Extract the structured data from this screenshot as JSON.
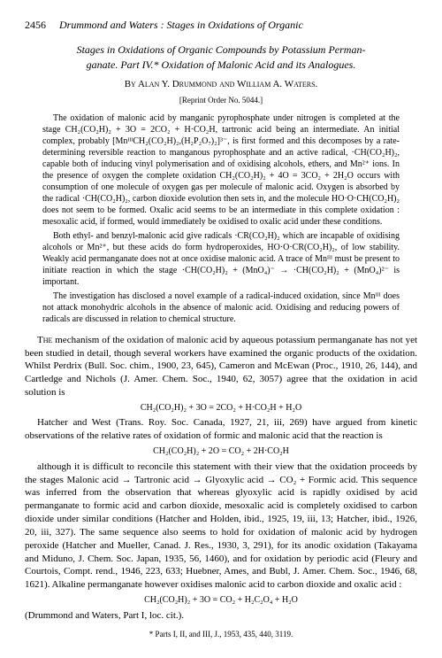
{
  "header": {
    "page_number": "2456",
    "running_title": "Drummond and Waters : Stages in Oxidations of Organic"
  },
  "title": {
    "line1": "Stages in Oxidations of Organic Compounds by Potassium Perman-",
    "line2": "ganate. Part IV.* Oxidation of Malonic Acid and its Analogues."
  },
  "authors": "By Alan Y. Drummond and William A. Waters.",
  "reprint": "[Reprint Order No. 5044.]",
  "abstract": {
    "p1": "The oxidation of malonic acid by manganic pyrophosphate under nitrogen is completed at the stage CH₂(CO₂H)₂ + 3O = 2CO₂ + H·CO₂H, tartronic acid being an intermediate. An initial complex, probably [MnᴵᴵᴵCH₂(CO₂H)₂,(H₂P₂O₇)₂]³⁻, is first formed and this decomposes by a rate-determining reversible reaction to manganous pyrophosphate and an active radical, ·CH(CO₂H)₂, capable both of inducing vinyl polymerisation and of oxidising alcohols, ethers, and Mn²⁺ ions. In the presence of oxygen the complete oxidation CH₂(CO₂H)₂ + 4O = 3CO₂ + 2H₂O occurs with consumption of one molecule of oxygen gas per molecule of malonic acid. Oxygen is absorbed by the radical ·CH(CO₂H)₂, carbon dioxide evolution then sets in, and the molecule HO·O·CH(CO₂H)₂ does not seem to be formed. Oxalic acid seems to be an intermediate in this complete oxidation : mesoxalic acid, if formed, would immediately be oxidised to oxalic acid under these conditions.",
    "p2": "Both ethyl- and benzyl-malonic acid give radicals ·CR(CO₂H)₂ which are incapable of oxidising alcohols or Mn²⁺, but these acids do form hydroperoxides, HO·O·CR(CO₂H)₂, of low stability. Weakly acid permanganate does not at once oxidise malonic acid. A trace of Mnᴵᴵᴵ must be present to initiate reaction in which the stage ·CH(CO₂H)₂ + (MnO₄)⁻ → ·CH(CO₂H)₂ + (MnO₄)²⁻ is important.",
    "p3": "The investigation has disclosed a novel example of a radical-induced oxidation, since Mnᴵᴵᴵ does not attack monohydric alcohols in the absence of malonic acid. Oxidising and reducing powers of radicals are discussed in relation to chemical structure."
  },
  "body": {
    "intro": "The mechanism of the oxidation of malonic acid by aqueous potassium permanganate has not yet been studied in detail, though several workers have examined the organic products of the oxidation. Whilst Perdrix (Bull. Soc. chim., 1900, 23, 645), Cameron and McEwan (Proc., 1910, 26, 144), and Cartledge and Nichols (J. Amer. Chem. Soc., 1940, 62, 3057) agree that the oxidation in acid solution is",
    "eq1": "CH₂(CO₂H)₂ + 3O = 2CO₂ + H·CO₂H + H₂O",
    "p2": "Hatcher and West (Trans. Roy. Soc. Canada, 1927, 21, iii, 269) have argued from kinetic observations of the relative rates of oxidation of formic and malonic acid that the reaction is",
    "eq2": "CH₂(CO₂H)₂ + 2O = CO₂ + 2H·CO₂H",
    "p3": "although it is difficult to reconcile this statement with their view that the oxidation proceeds by the stages Malonic acid → Tartronic acid → Glyoxylic acid → CO₂ + Formic acid. This sequence was inferred from the observation that whereas glyoxylic acid is rapidly oxidised by acid permanganate to formic acid and carbon dioxide, mesoxalic acid is completely oxidised to carbon dioxide under similar conditions (Hatcher and Holden, ibid., 1925, 19, iii, 13; Hatcher, ibid., 1926, 20, iii, 327). The same sequence also seems to hold for oxidation of malonic acid by hydrogen peroxide (Hatcher and Mueller, Canad. J. Res., 1930, 3, 291), for its anodic oxidation (Takayama and Miduno, J. Chem. Soc. Japan, 1935, 56, 1460), and for oxidation by periodic acid (Fleury and Courtois, Compt. rend., 1946, 223, 633; Huebner, Ames, and Bubl, J. Amer. Chem. Soc., 1946, 68, 1621). Alkaline permanganate however oxidises malonic acid to carbon dioxide and oxalic acid :",
    "eq3": "CH₂(CO₂H)₂ + 3O = CO₂ + H₂C₂O₄ + H₂O",
    "p4": "(Drummond and Waters, Part I, loc. cit.)."
  },
  "footnote": "* Parts I, II, and III, J., 1953, 435, 440, 3119."
}
